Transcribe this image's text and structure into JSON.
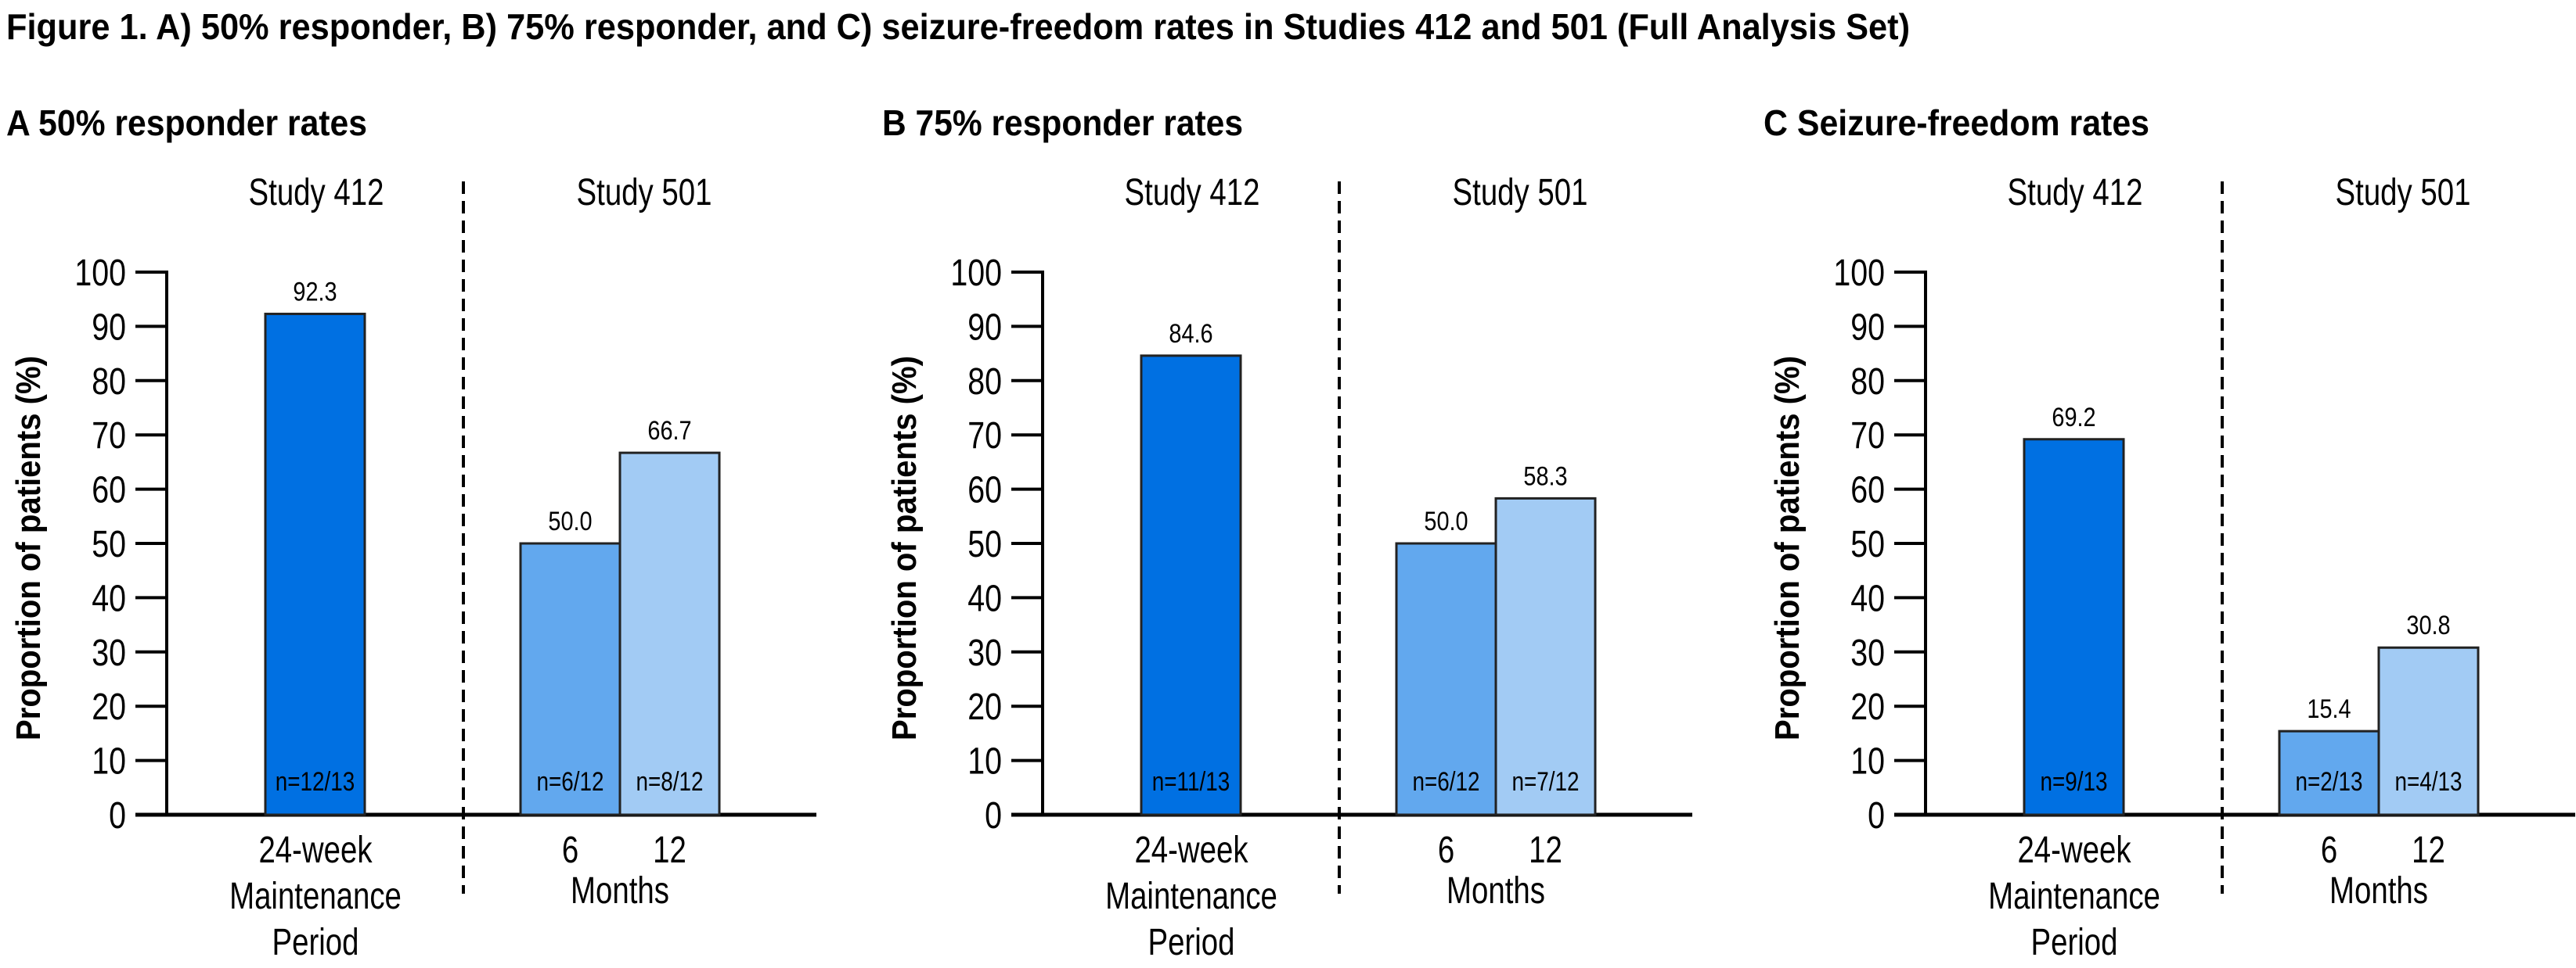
{
  "figure_title": "Figure 1. A) 50% responder, B) 75% responder, and C) seizure-freedom rates in Studies 412 and 501 (Full Analysis Set)",
  "colors": {
    "study412": "#0070e2",
    "month6": "#62a8ee",
    "month12": "#a2cbf4",
    "axis": "#000000",
    "bar_outline": "#222222"
  },
  "chart_data": [
    {
      "type": "bar",
      "panel": "A",
      "title": "A 50% responder rates",
      "ylabel": "Proportion of patients (%)",
      "ylim": [
        0,
        100
      ],
      "yticks": [
        "0",
        "10",
        "20",
        "30",
        "40",
        "50",
        "60",
        "70",
        "80",
        "90",
        "100"
      ],
      "grid": false,
      "groups": [
        {
          "name": "Study 412",
          "xlabel_lines": [
            "24-week",
            "Maintenance",
            "Period"
          ],
          "bars": [
            {
              "category": "24-week Maintenance Period",
              "value": 92.3,
              "label": "92.3",
              "n": "n=12/13",
              "color_key": "study412",
              "n_color": "#ffffff"
            }
          ]
        },
        {
          "name": "Study 501",
          "xlabel_lines": [
            "Months"
          ],
          "tick_labels": [
            "6",
            "12"
          ],
          "bars": [
            {
              "category": "6",
              "value": 50.0,
              "label": "50.0",
              "n": "n=6/12",
              "color_key": "month6",
              "n_color": "#ffffff"
            },
            {
              "category": "12",
              "value": 66.7,
              "label": "66.7",
              "n": "n=8/12",
              "color_key": "month12",
              "n_color": "#000000"
            }
          ]
        }
      ]
    },
    {
      "type": "bar",
      "panel": "B",
      "title": "B 75% responder rates",
      "ylabel": "Proportion of patients (%)",
      "ylim": [
        0,
        100
      ],
      "yticks": [
        "0",
        "10",
        "20",
        "30",
        "40",
        "50",
        "60",
        "70",
        "80",
        "90",
        "100"
      ],
      "grid": false,
      "groups": [
        {
          "name": "Study 412",
          "xlabel_lines": [
            "24-week",
            "Maintenance",
            "Period"
          ],
          "bars": [
            {
              "category": "24-week Maintenance Period",
              "value": 84.6,
              "label": "84.6",
              "n": "n=11/13",
              "color_key": "study412",
              "n_color": "#ffffff"
            }
          ]
        },
        {
          "name": "Study 501",
          "xlabel_lines": [
            "Months"
          ],
          "tick_labels": [
            "6",
            "12"
          ],
          "bars": [
            {
              "category": "6",
              "value": 50.0,
              "label": "50.0",
              "n": "n=6/12",
              "color_key": "month6",
              "n_color": "#ffffff"
            },
            {
              "category": "12",
              "value": 58.3,
              "label": "58.3",
              "n": "n=7/12",
              "color_key": "month12",
              "n_color": "#000000"
            }
          ]
        }
      ]
    },
    {
      "type": "bar",
      "panel": "C",
      "title": "C Seizure-freedom rates",
      "ylabel": "Proportion of patients (%)",
      "ylim": [
        0,
        100
      ],
      "yticks": [
        "0",
        "10",
        "20",
        "30",
        "40",
        "50",
        "60",
        "70",
        "80",
        "90",
        "100"
      ],
      "grid": false,
      "groups": [
        {
          "name": "Study 412",
          "xlabel_lines": [
            "24-week",
            "Maintenance",
            "Period"
          ],
          "bars": [
            {
              "category": "24-week Maintenance Period",
              "value": 69.2,
              "label": "69.2",
              "n": "n=9/13",
              "color_key": "study412",
              "n_color": "#ffffff"
            }
          ]
        },
        {
          "name": "Study 501",
          "xlabel_lines": [
            "Months"
          ],
          "tick_labels": [
            "6",
            "12"
          ],
          "bars": [
            {
              "category": "6",
              "value": 15.4,
              "label": "15.4",
              "n": "n=2/13",
              "color_key": "month6",
              "n_color": "#ffffff"
            },
            {
              "category": "12",
              "value": 30.8,
              "label": "30.8",
              "n": "n=4/13",
              "color_key": "month12",
              "n_color": "#000000"
            }
          ]
        }
      ]
    }
  ]
}
